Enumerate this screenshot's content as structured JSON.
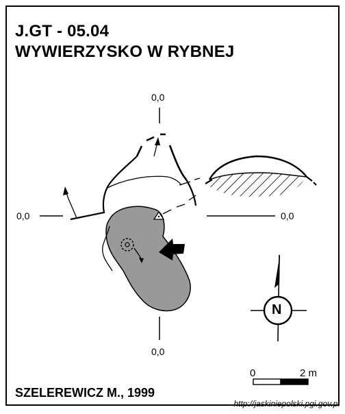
{
  "header": {
    "code": "J.GT - 05.04",
    "name": "WYWIERZYSKO W RYBNEJ"
  },
  "coordinates": {
    "top": "0,0",
    "left": "0,0",
    "right": "0,0",
    "bottom": "0,0"
  },
  "compass": {
    "label": "N"
  },
  "scale": {
    "start": "0",
    "end": "2 m"
  },
  "footer": {
    "author": "SZELEREWICZ M., 1999",
    "url": "http://jaskiniepolski.pgi.gov.pl"
  },
  "colors": {
    "cave_fill": "#999999",
    "ink": "#000000"
  }
}
